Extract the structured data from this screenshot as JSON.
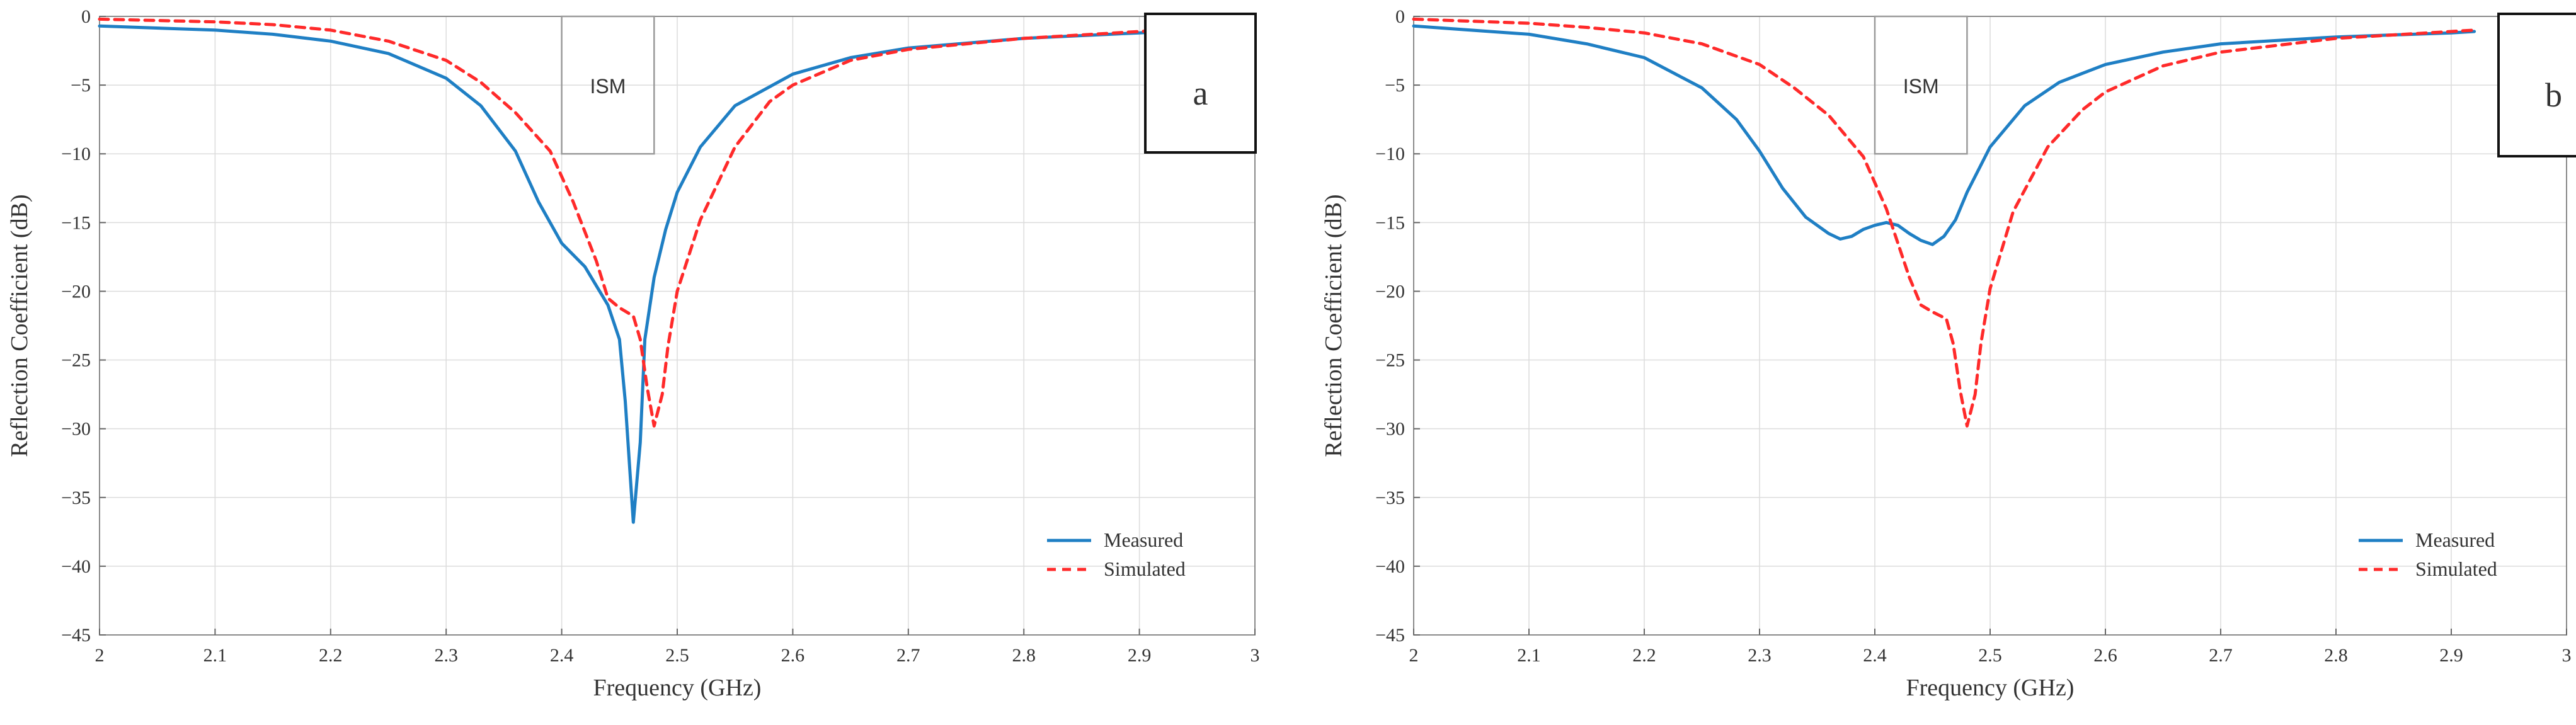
{
  "chart_data": [
    {
      "type": "line",
      "panel_label": "a",
      "xlabel": "Frequency (GHz)",
      "ylabel": "Reflection Coefficient (dB)",
      "xlim": [
        2,
        3
      ],
      "ylim": [
        -45,
        0
      ],
      "xticks": [
        2,
        2.1,
        2.2,
        2.3,
        2.4,
        2.5,
        2.6,
        2.7,
        2.8,
        2.9,
        3
      ],
      "xtick_labels": [
        "2",
        "2.1",
        "2.2",
        "2.3",
        "2.4",
        "2.5",
        "2.6",
        "2.7",
        "2.8",
        "2.9",
        "3"
      ],
      "yticks": [
        0,
        -5,
        -10,
        -15,
        -20,
        -25,
        -30,
        -35,
        -40,
        -45
      ],
      "ytick_labels": [
        "0",
        "−5",
        "−10",
        "−15",
        "−20",
        "−25",
        "−30",
        "−35",
        "−40",
        "−45"
      ],
      "grid": true,
      "legend_position": "lower-right",
      "annotation": {
        "label": "ISM",
        "x_range": [
          2.4,
          2.48
        ],
        "y_range": [
          -10,
          0
        ]
      },
      "series": [
        {
          "name": "Measured",
          "color": "#1f7fc4",
          "style": "solid",
          "points": [
            [
              2.0,
              -0.7
            ],
            [
              2.1,
              -1.0
            ],
            [
              2.15,
              -1.3
            ],
            [
              2.2,
              -1.8
            ],
            [
              2.25,
              -2.7
            ],
            [
              2.3,
              -4.5
            ],
            [
              2.33,
              -6.5
            ],
            [
              2.36,
              -9.8
            ],
            [
              2.38,
              -13.5
            ],
            [
              2.4,
              -16.5
            ],
            [
              2.42,
              -18.2
            ],
            [
              2.44,
              -21.0
            ],
            [
              2.45,
              -23.5
            ],
            [
              2.455,
              -28.0
            ],
            [
              2.462,
              -36.8
            ],
            [
              2.468,
              -31.0
            ],
            [
              2.472,
              -23.5
            ],
            [
              2.48,
              -19.0
            ],
            [
              2.49,
              -15.5
            ],
            [
              2.5,
              -12.8
            ],
            [
              2.52,
              -9.5
            ],
            [
              2.55,
              -6.5
            ],
            [
              2.6,
              -4.2
            ],
            [
              2.65,
              -3.0
            ],
            [
              2.7,
              -2.3
            ],
            [
              2.8,
              -1.6
            ],
            [
              2.9,
              -1.2
            ],
            [
              2.92,
              -1.1
            ]
          ]
        },
        {
          "name": "Simulated",
          "color": "#ff2a2a",
          "style": "dashed",
          "points": [
            [
              2.0,
              -0.2
            ],
            [
              2.1,
              -0.4
            ],
            [
              2.15,
              -0.6
            ],
            [
              2.2,
              -1.0
            ],
            [
              2.25,
              -1.8
            ],
            [
              2.3,
              -3.2
            ],
            [
              2.33,
              -4.8
            ],
            [
              2.36,
              -7.0
            ],
            [
              2.39,
              -9.8
            ],
            [
              2.41,
              -13.5
            ],
            [
              2.43,
              -17.8
            ],
            [
              2.44,
              -20.5
            ],
            [
              2.45,
              -21.2
            ],
            [
              2.462,
              -21.8
            ],
            [
              2.468,
              -23.5
            ],
            [
              2.474,
              -27.0
            ],
            [
              2.48,
              -29.8
            ],
            [
              2.487,
              -27.5
            ],
            [
              2.492,
              -24.0
            ],
            [
              2.5,
              -20.0
            ],
            [
              2.52,
              -14.8
            ],
            [
              2.55,
              -9.5
            ],
            [
              2.58,
              -6.2
            ],
            [
              2.6,
              -5.0
            ],
            [
              2.65,
              -3.2
            ],
            [
              2.7,
              -2.4
            ],
            [
              2.8,
              -1.6
            ],
            [
              2.9,
              -1.1
            ],
            [
              2.92,
              -1.0
            ]
          ]
        }
      ]
    },
    {
      "type": "line",
      "panel_label": "b",
      "xlabel": "Frequency (GHz)",
      "ylabel": "Reflection Coefficient (dB)",
      "xlim": [
        2,
        3
      ],
      "ylim": [
        -45,
        0
      ],
      "xticks": [
        2,
        2.1,
        2.2,
        2.3,
        2.4,
        2.5,
        2.6,
        2.7,
        2.8,
        2.9,
        3
      ],
      "xtick_labels": [
        "2",
        "2.1",
        "2.2",
        "2.3",
        "2.4",
        "2.5",
        "2.6",
        "2.7",
        "2.8",
        "2.9",
        "3"
      ],
      "yticks": [
        0,
        -5,
        -10,
        -15,
        -20,
        -25,
        -30,
        -35,
        -40,
        -45
      ],
      "ytick_labels": [
        "0",
        "−5",
        "−10",
        "−15",
        "−20",
        "−25",
        "−30",
        "−35",
        "−40",
        "−45"
      ],
      "grid": true,
      "legend_position": "lower-right",
      "annotation": {
        "label": "ISM",
        "x_range": [
          2.4,
          2.48
        ],
        "y_range": [
          -10,
          0
        ]
      },
      "series": [
        {
          "name": "Measured",
          "color": "#1f7fc4",
          "style": "solid",
          "points": [
            [
              2.0,
              -0.7
            ],
            [
              2.1,
              -1.3
            ],
            [
              2.15,
              -2.0
            ],
            [
              2.2,
              -3.0
            ],
            [
              2.25,
              -5.2
            ],
            [
              2.28,
              -7.5
            ],
            [
              2.3,
              -9.8
            ],
            [
              2.32,
              -12.5
            ],
            [
              2.34,
              -14.6
            ],
            [
              2.36,
              -15.8
            ],
            [
              2.37,
              -16.2
            ],
            [
              2.38,
              -16.0
            ],
            [
              2.39,
              -15.5
            ],
            [
              2.4,
              -15.2
            ],
            [
              2.41,
              -15.0
            ],
            [
              2.42,
              -15.2
            ],
            [
              2.43,
              -15.8
            ],
            [
              2.44,
              -16.3
            ],
            [
              2.45,
              -16.6
            ],
            [
              2.46,
              -16.0
            ],
            [
              2.47,
              -14.8
            ],
            [
              2.48,
              -12.8
            ],
            [
              2.5,
              -9.5
            ],
            [
              2.53,
              -6.5
            ],
            [
              2.56,
              -4.8
            ],
            [
              2.6,
              -3.5
            ],
            [
              2.65,
              -2.6
            ],
            [
              2.7,
              -2.0
            ],
            [
              2.8,
              -1.5
            ],
            [
              2.9,
              -1.2
            ],
            [
              2.92,
              -1.1
            ]
          ]
        },
        {
          "name": "Simulated",
          "color": "#ff2a2a",
          "style": "dashed",
          "points": [
            [
              2.0,
              -0.2
            ],
            [
              2.1,
              -0.5
            ],
            [
              2.15,
              -0.8
            ],
            [
              2.2,
              -1.2
            ],
            [
              2.25,
              -2.0
            ],
            [
              2.3,
              -3.5
            ],
            [
              2.33,
              -5.2
            ],
            [
              2.36,
              -7.2
            ],
            [
              2.39,
              -10.2
            ],
            [
              2.41,
              -14.0
            ],
            [
              2.43,
              -19.0
            ],
            [
              2.44,
              -21.0
            ],
            [
              2.45,
              -21.5
            ],
            [
              2.462,
              -22.0
            ],
            [
              2.468,
              -23.8
            ],
            [
              2.474,
              -27.2
            ],
            [
              2.48,
              -29.8
            ],
            [
              2.487,
              -27.5
            ],
            [
              2.492,
              -23.8
            ],
            [
              2.5,
              -19.8
            ],
            [
              2.52,
              -14.2
            ],
            [
              2.55,
              -9.5
            ],
            [
              2.58,
              -6.8
            ],
            [
              2.6,
              -5.5
            ],
            [
              2.65,
              -3.6
            ],
            [
              2.7,
              -2.6
            ],
            [
              2.8,
              -1.6
            ],
            [
              2.9,
              -1.1
            ],
            [
              2.92,
              -1.0
            ]
          ]
        }
      ]
    }
  ]
}
